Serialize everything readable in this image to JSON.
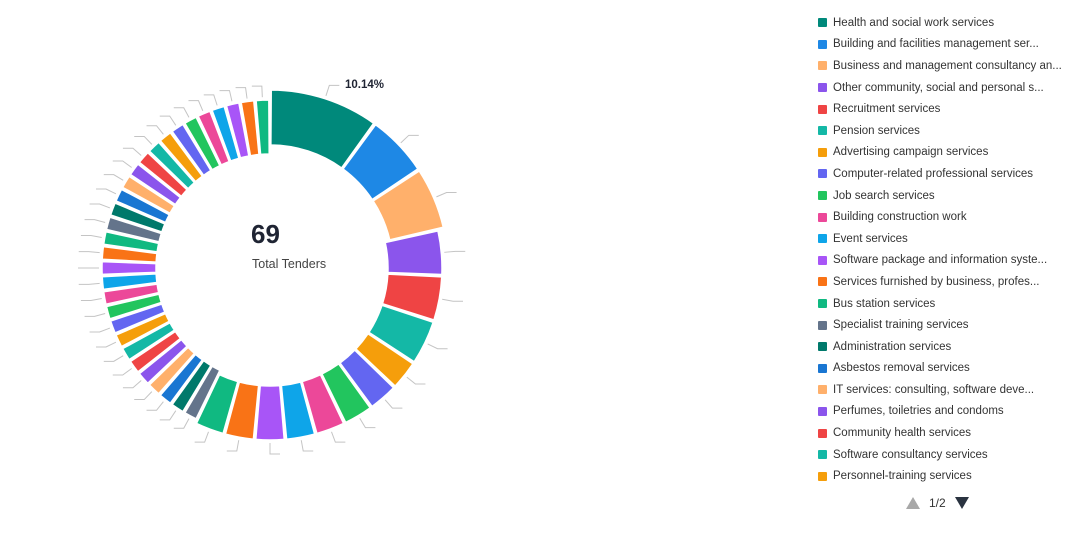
{
  "center": {
    "value": "69",
    "label": "Total Tenders"
  },
  "highlight_label": "10.14%",
  "legend": {
    "items": [
      {
        "label": "Health and social work services",
        "color": "#00897b"
      },
      {
        "label": "Building and facilities management ser...",
        "color": "#1e88e5"
      },
      {
        "label": "Business and management consultancy an...",
        "color": "#ffb06b"
      },
      {
        "label": "Other community, social and personal s...",
        "color": "#8b55ec"
      },
      {
        "label": "Recruitment services",
        "color": "#ef4444"
      },
      {
        "label": "Pension services",
        "color": "#14b8a6"
      },
      {
        "label": "Advertising campaign services",
        "color": "#f59e0b"
      },
      {
        "label": "Computer-related professional services",
        "color": "#6366f1"
      },
      {
        "label": "Job search services",
        "color": "#22c55e"
      },
      {
        "label": "Building construction work",
        "color": "#ec4899"
      },
      {
        "label": "Event services",
        "color": "#0ea5e9"
      },
      {
        "label": "Software package and information syste...",
        "color": "#a855f7"
      },
      {
        "label": "Services furnished by business, profes...",
        "color": "#f97316"
      },
      {
        "label": "Bus station services",
        "color": "#10b981"
      },
      {
        "label": "Specialist training services",
        "color": "#64748b"
      },
      {
        "label": "Administration services",
        "color": "#00796b"
      },
      {
        "label": "Asbestos removal services",
        "color": "#1976d2"
      },
      {
        "label": "IT services: consulting, software deve...",
        "color": "#ffb06b"
      },
      {
        "label": "Perfumes, toiletries and condoms",
        "color": "#8b55ec"
      },
      {
        "label": "Community health services",
        "color": "#ef4444"
      },
      {
        "label": "Software consultancy services",
        "color": "#14b8a6"
      },
      {
        "label": "Personnel-training services",
        "color": "#f59e0b"
      }
    ],
    "pager": {
      "text": "1/2"
    }
  },
  "chart_data": {
    "type": "pie",
    "style": "donut",
    "total": 69,
    "legend_position": "right",
    "percent_label_shown": "10.14%",
    "series": [
      {
        "color": "#00897b",
        "value": 7
      },
      {
        "color": "#1e88e5",
        "value": 4
      },
      {
        "color": "#ffb06b",
        "value": 4
      },
      {
        "color": "#8b55ec",
        "value": 3
      },
      {
        "color": "#ef4444",
        "value": 3
      },
      {
        "color": "#14b8a6",
        "value": 3
      },
      {
        "color": "#f59e0b",
        "value": 2
      },
      {
        "color": "#6366f1",
        "value": 2
      },
      {
        "color": "#22c55e",
        "value": 2
      },
      {
        "color": "#ec4899",
        "value": 2
      },
      {
        "color": "#0ea5e9",
        "value": 2
      },
      {
        "color": "#a855f7",
        "value": 2
      },
      {
        "color": "#f97316",
        "value": 2
      },
      {
        "color": "#10b981",
        "value": 2
      },
      {
        "color": "#64748b",
        "value": 1
      },
      {
        "color": "#00796b",
        "value": 1
      },
      {
        "color": "#1976d2",
        "value": 1
      },
      {
        "color": "#ffb06b",
        "value": 1
      },
      {
        "color": "#8b55ec",
        "value": 1
      },
      {
        "color": "#ef4444",
        "value": 1
      },
      {
        "color": "#14b8a6",
        "value": 1
      },
      {
        "color": "#f59e0b",
        "value": 1
      },
      {
        "color": "#6366f1",
        "value": 1
      },
      {
        "color": "#22c55e",
        "value": 1
      },
      {
        "color": "#ec4899",
        "value": 1
      },
      {
        "color": "#0ea5e9",
        "value": 1
      },
      {
        "color": "#a855f7",
        "value": 1
      },
      {
        "color": "#f97316",
        "value": 1
      },
      {
        "color": "#10b981",
        "value": 1
      },
      {
        "color": "#64748b",
        "value": 1
      },
      {
        "color": "#00796b",
        "value": 1
      },
      {
        "color": "#1976d2",
        "value": 1
      },
      {
        "color": "#ffb06b",
        "value": 1
      },
      {
        "color": "#8b55ec",
        "value": 1
      },
      {
        "color": "#ef4444",
        "value": 1
      },
      {
        "color": "#14b8a6",
        "value": 1
      },
      {
        "color": "#f59e0b",
        "value": 1
      },
      {
        "color": "#6366f1",
        "value": 1
      },
      {
        "color": "#22c55e",
        "value": 1
      },
      {
        "color": "#ec4899",
        "value": 1
      },
      {
        "color": "#0ea5e9",
        "value": 1
      },
      {
        "color": "#a855f7",
        "value": 1
      },
      {
        "color": "#f97316",
        "value": 1
      },
      {
        "color": "#10b981",
        "value": 1
      }
    ]
  }
}
